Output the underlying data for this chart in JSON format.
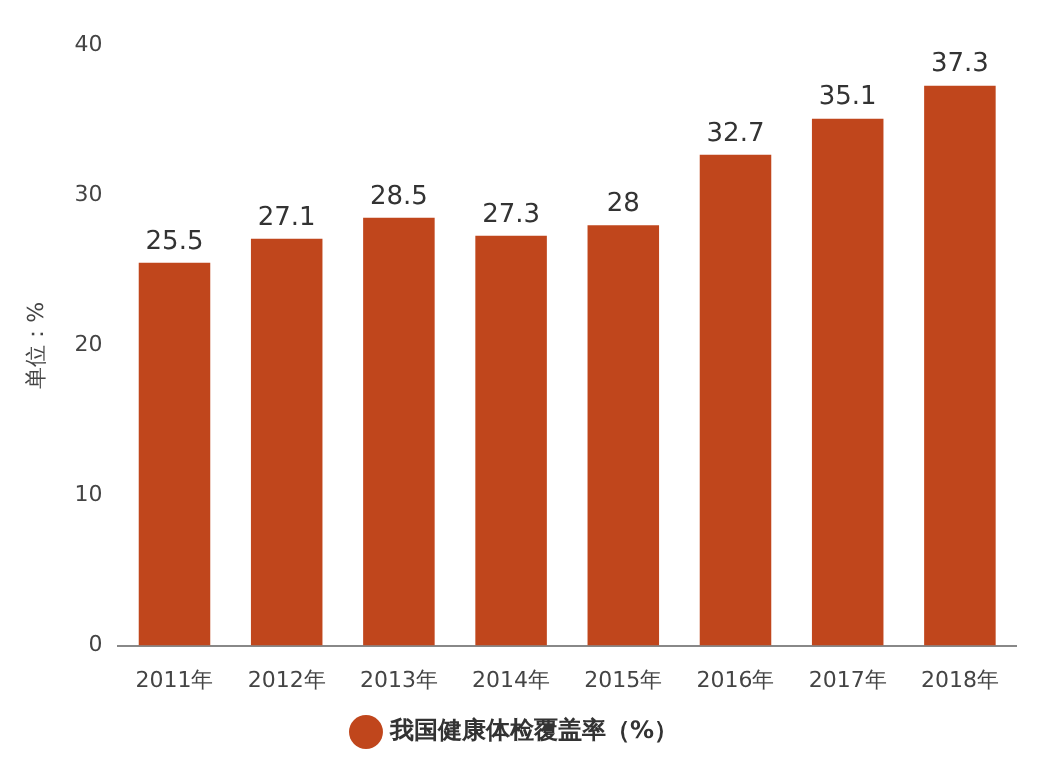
{
  "chart_data": {
    "type": "bar",
    "ylabel": "单位：%",
    "categories": [
      "2011年",
      "2012年",
      "2013年",
      "2014年",
      "2015年",
      "2016年",
      "2017年",
      "2018年"
    ],
    "series": [
      {
        "name": "我国健康体检覆盖率（%）",
        "color": "#c0461c",
        "values": [
          25.5,
          27.1,
          28.5,
          27.3,
          28,
          32.7,
          35.1,
          37.3
        ]
      }
    ],
    "ylim": [
      0,
      40
    ],
    "yticks": [
      0,
      10,
      20,
      30,
      40
    ],
    "grid": false,
    "legend": "bottom",
    "data_labels": true
  }
}
